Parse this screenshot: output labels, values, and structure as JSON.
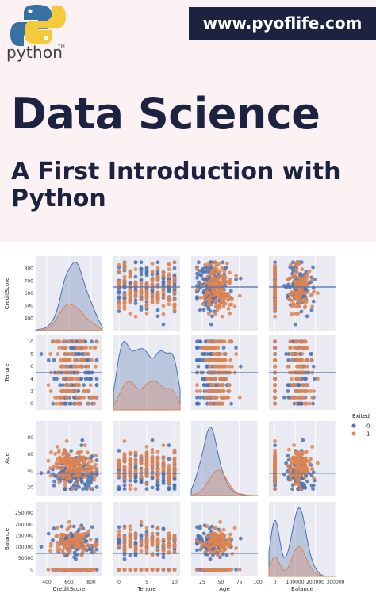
{
  "header": {
    "logo_text": "python",
    "logo_tm": "TM",
    "url": "www.pyoflife.com",
    "title": "Data Science",
    "subtitle_line1": "A First Introduction with",
    "subtitle_line2": "Python"
  },
  "colors": {
    "navy": "#1c2340",
    "series0": "#4c72b0",
    "series1": "#dd8452",
    "panel_bg": "#eaeaf2",
    "top_bg": "#fdf2f3"
  },
  "chart_data": {
    "type": "scatter",
    "subtype": "pairplot",
    "variables": [
      "CreditScore",
      "Tenure",
      "Age",
      "Balance"
    ],
    "legend": {
      "title": "Exited",
      "entries": [
        "0",
        "1"
      ],
      "position": "right"
    },
    "axes": {
      "CreditScore": {
        "range": [
          300,
          900
        ],
        "x_ticks": [
          400,
          600,
          800
        ],
        "y_ticks": [
          400,
          500,
          600,
          700,
          800
        ]
      },
      "Tenure": {
        "range": [
          -1,
          11
        ],
        "x_ticks": [
          0,
          5,
          10
        ],
        "y_ticks": [
          0,
          2,
          4,
          6,
          8,
          10
        ]
      },
      "Age": {
        "range": [
          10,
          100
        ],
        "x_ticks": [
          25,
          50,
          75,
          100
        ],
        "y_ticks": [
          20,
          40,
          60,
          80
        ]
      },
      "Balance": {
        "range": [
          -30000,
          300000
        ],
        "x_ticks": [
          0,
          100000,
          200000,
          300000
        ],
        "y_ticks": [
          0,
          50000,
          100000,
          150000,
          200000,
          250000
        ]
      }
    },
    "grid": true,
    "series": [
      {
        "name": "0",
        "color": "#4c72b0",
        "means": {
          "CreditScore": 651,
          "Tenure": 5,
          "Age": 37,
          "Balance": 72000
        },
        "sds": {
          "CreditScore": 95,
          "Tenure": 2.9,
          "Age": 10,
          "Balance": 62000
        }
      },
      {
        "name": "1",
        "color": "#dd8452",
        "means": {
          "CreditScore": 645,
          "Tenure": 5,
          "Age": 45,
          "Balance": 91000
        },
        "sds": {
          "CreditScore": 100,
          "Tenure": 2.9,
          "Age": 10,
          "Balance": 58000
        }
      }
    ]
  }
}
